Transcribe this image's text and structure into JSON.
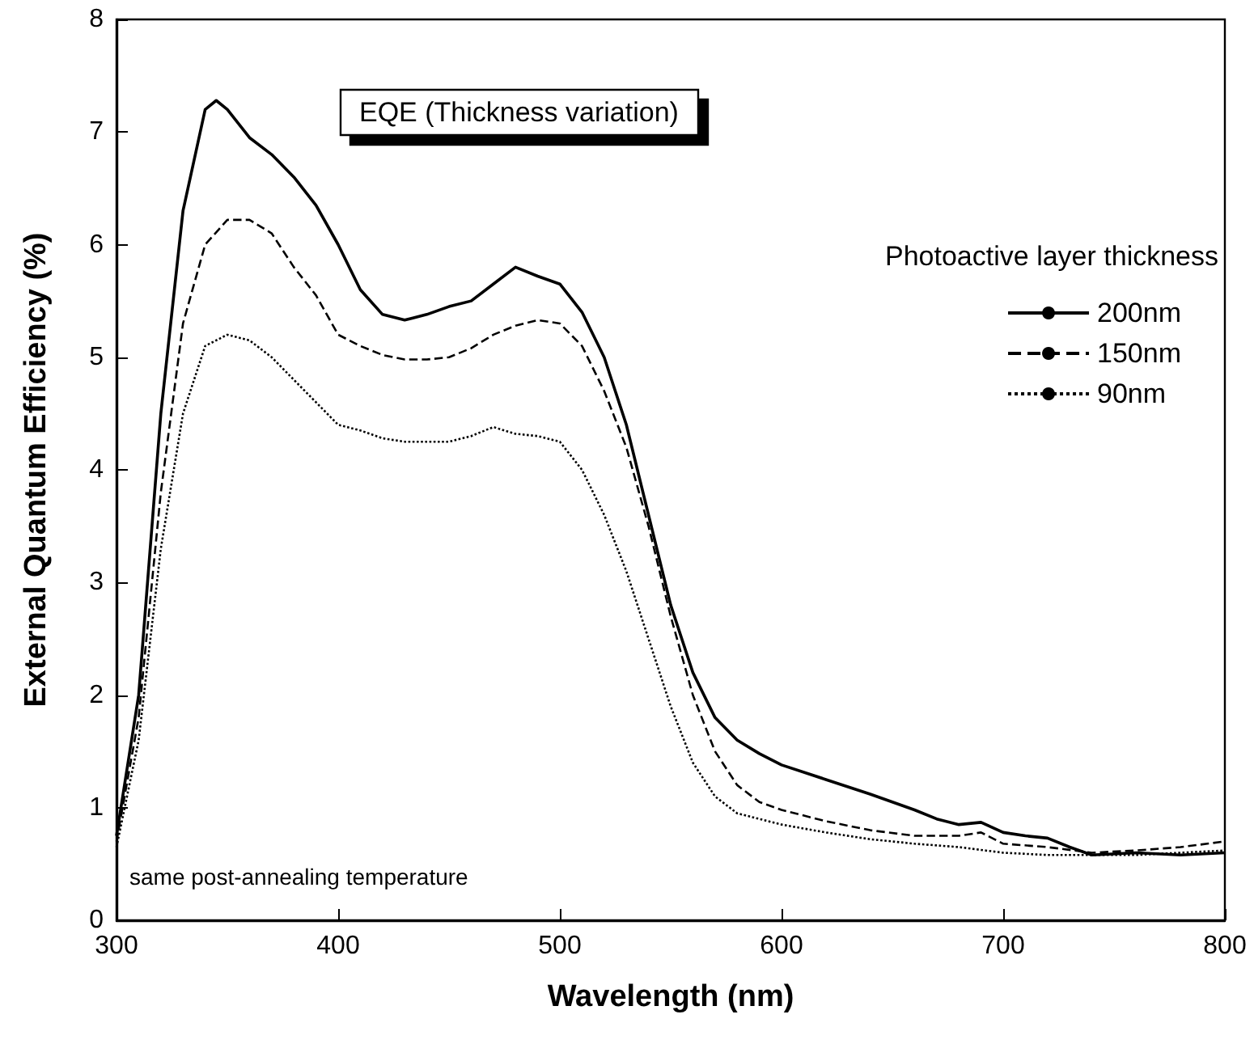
{
  "chart_data": {
    "type": "line",
    "title": "EQE (Thickness variation)",
    "xlabel": "Wavelength (nm)",
    "ylabel": "External Quantum Efficiency (%)",
    "legend_title": "Photoactive layer thickness",
    "legend": "right",
    "annotations": [
      "same post-annealing temperature"
    ],
    "xlim": [
      300,
      800
    ],
    "xticks": [
      300,
      400,
      500,
      600,
      700,
      800
    ],
    "ylim": [
      0,
      8
    ],
    "yticks": [
      0,
      1,
      2,
      3,
      4,
      5,
      6,
      7,
      8
    ],
    "grid": false,
    "series": [
      {
        "name": "200nm",
        "color": "#000000",
        "line_style": "solid",
        "x": [
          300,
          310,
          320,
          330,
          340,
          345,
          350,
          360,
          370,
          380,
          390,
          400,
          410,
          420,
          430,
          440,
          450,
          460,
          470,
          480,
          490,
          500,
          510,
          520,
          530,
          540,
          550,
          560,
          570,
          580,
          590,
          600,
          620,
          640,
          660,
          670,
          680,
          690,
          700,
          710,
          720,
          730,
          740,
          760,
          780,
          800
        ],
        "values": [
          0.75,
          2.0,
          4.5,
          6.3,
          7.2,
          7.28,
          7.2,
          6.95,
          6.8,
          6.6,
          6.35,
          6.0,
          5.6,
          5.38,
          5.33,
          5.38,
          5.45,
          5.5,
          5.65,
          5.8,
          5.72,
          5.65,
          5.4,
          5.0,
          4.4,
          3.6,
          2.8,
          2.2,
          1.8,
          1.6,
          1.48,
          1.38,
          1.25,
          1.12,
          0.98,
          0.9,
          0.85,
          0.87,
          0.78,
          0.75,
          0.73,
          0.65,
          0.58,
          0.6,
          0.58,
          0.6
        ]
      },
      {
        "name": "150nm",
        "color": "#000000",
        "line_style": "dashed",
        "x": [
          300,
          310,
          320,
          330,
          340,
          350,
          360,
          370,
          380,
          390,
          400,
          410,
          420,
          430,
          440,
          450,
          460,
          470,
          480,
          490,
          500,
          510,
          520,
          530,
          540,
          550,
          560,
          570,
          580,
          590,
          600,
          620,
          640,
          660,
          680,
          690,
          700,
          720,
          740,
          760,
          780,
          800
        ],
        "values": [
          0.7,
          1.8,
          3.8,
          5.3,
          6.0,
          6.22,
          6.22,
          6.1,
          5.8,
          5.55,
          5.2,
          5.1,
          5.02,
          4.98,
          4.98,
          5.0,
          5.08,
          5.2,
          5.28,
          5.33,
          5.3,
          5.1,
          4.7,
          4.2,
          3.5,
          2.7,
          2.0,
          1.5,
          1.2,
          1.05,
          0.98,
          0.88,
          0.8,
          0.75,
          0.75,
          0.78,
          0.68,
          0.65,
          0.6,
          0.62,
          0.65,
          0.7
        ]
      },
      {
        "name": "90nm",
        "color": "#000000",
        "line_style": "dotted",
        "x": [
          300,
          310,
          320,
          330,
          340,
          350,
          360,
          370,
          380,
          390,
          400,
          410,
          420,
          430,
          440,
          450,
          460,
          470,
          480,
          490,
          500,
          510,
          520,
          530,
          540,
          550,
          560,
          570,
          580,
          600,
          620,
          640,
          660,
          680,
          700,
          720,
          740,
          760,
          780,
          800
        ],
        "values": [
          0.65,
          1.6,
          3.3,
          4.5,
          5.1,
          5.2,
          5.15,
          5.0,
          4.8,
          4.6,
          4.4,
          4.35,
          4.28,
          4.25,
          4.25,
          4.25,
          4.3,
          4.38,
          4.32,
          4.3,
          4.25,
          4.0,
          3.6,
          3.1,
          2.5,
          1.9,
          1.4,
          1.1,
          0.95,
          0.85,
          0.78,
          0.72,
          0.68,
          0.65,
          0.6,
          0.58,
          0.58,
          0.58,
          0.6,
          0.62
        ]
      }
    ]
  }
}
